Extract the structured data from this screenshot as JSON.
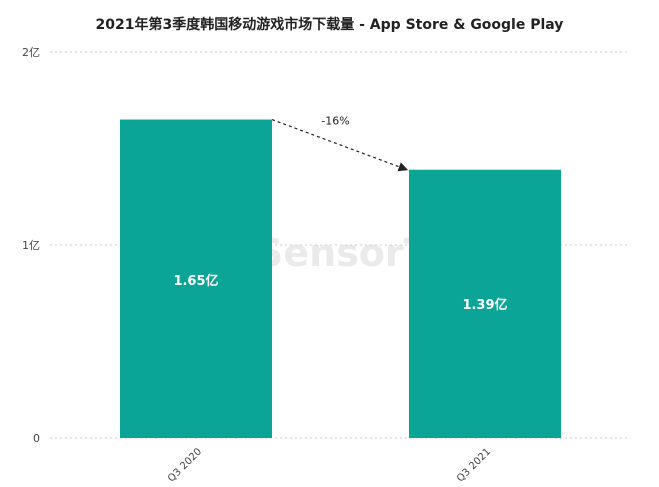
{
  "chart_data": {
    "type": "bar",
    "title": "2021年第3季度韩国移动游戏市场下载量 - App Store & Google Play",
    "categories": [
      "Q3 2020",
      "Q3 2021"
    ],
    "values": [
      1.65,
      1.39
    ],
    "data_labels": [
      "1.65亿",
      "1.39亿"
    ],
    "unit": "亿",
    "ylim": [
      0,
      2
    ],
    "yticks": [
      0,
      1,
      2
    ],
    "ytick_labels": [
      "0",
      "1亿",
      "2亿"
    ],
    "grid": true,
    "change_annotation": "-16%",
    "bar_color": "#0aa596",
    "xlabel": "",
    "ylabel": ""
  },
  "watermark": "SensorTower"
}
